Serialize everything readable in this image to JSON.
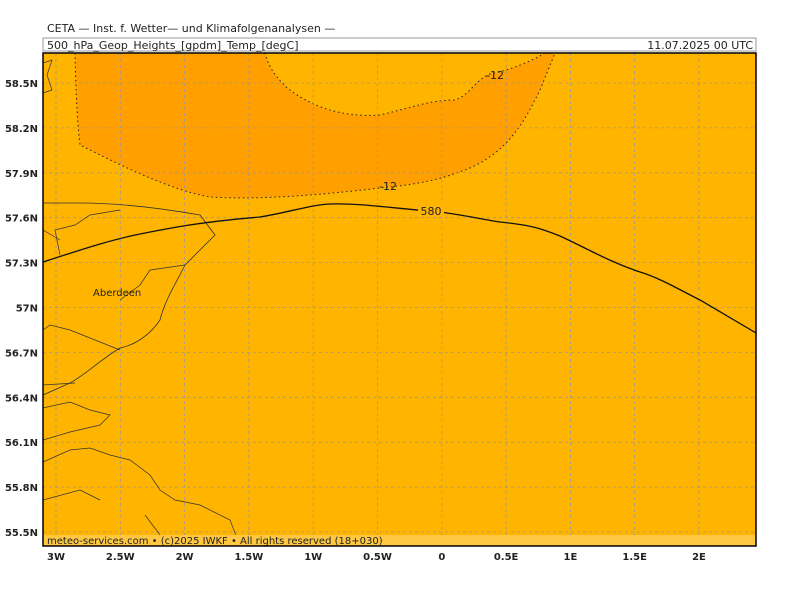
{
  "header": {
    "title": "CETA — Inst. f. Wetter— und Klimafolgenanalysen —",
    "subtitle": "500_hPa_Geop_Heights_[gpdm]_Temp_[degC]",
    "timestamp": "11.07.2025 00 UTC"
  },
  "map": {
    "lat_labels": [
      "58.5N",
      "58.2N",
      "57.9N",
      "57.6N",
      "57.3N",
      "57N",
      "56.7N",
      "56.4N",
      "56.1N",
      "55.8N",
      "55.5N"
    ],
    "lon_labels": [
      "3W",
      "2.5W",
      "2W",
      "1.5W",
      "1W",
      "0.5W",
      "0",
      "0.5E",
      "1E",
      "1.5E",
      "2E"
    ],
    "contour_labels": [
      "580",
      "-12",
      "-12"
    ],
    "place": "Aberdeen",
    "footer": "meteo-services.com • (c)2025 IWKF • All rights reserved (18+030)"
  }
}
